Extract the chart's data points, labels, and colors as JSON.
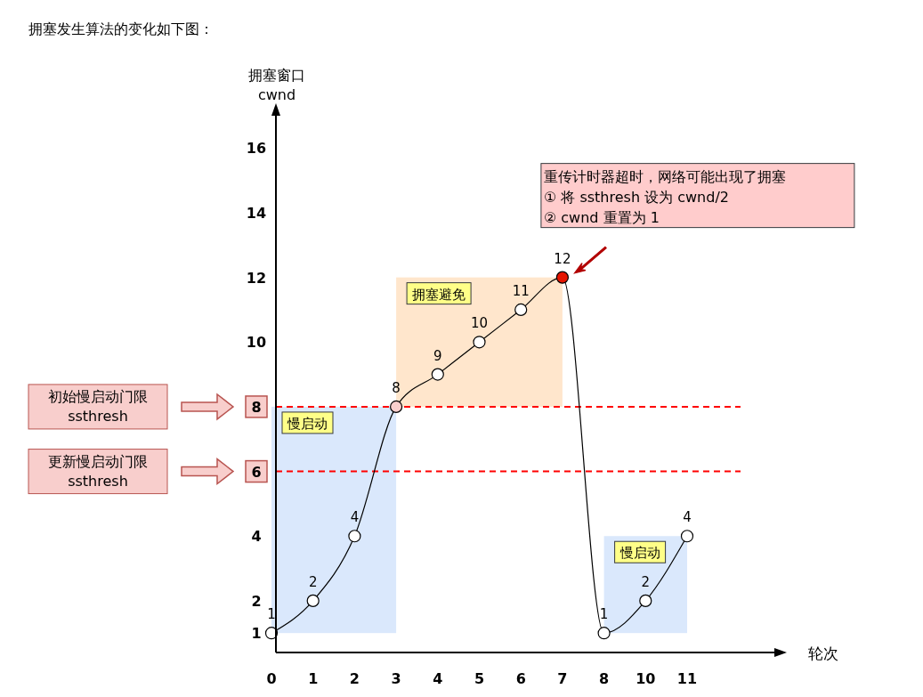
{
  "chart_data": {
    "type": "line",
    "title": "拥塞发生算法的变化如下图：",
    "xlabel": "轮次",
    "ylabel": "拥塞窗口\ncwnd",
    "categories": [
      "0",
      "1",
      "2",
      "3",
      "4",
      "5",
      "6",
      "7",
      "8",
      "10",
      "11"
    ],
    "series": [
      {
        "color": "#000000",
        "colors": [
          "#ffffff",
          "#ffffff",
          "#ffffff",
          "#f8cecc",
          "#ffffff",
          "#ffffff",
          "#ffffff",
          "#e51400",
          "#ffffff",
          "#ffffff",
          "#ffffff"
        ],
        "values": [
          1,
          2,
          4,
          8,
          9,
          10,
          11,
          12,
          1,
          2,
          4
        ]
      }
    ],
    "ylim": [
      0.4,
      17
    ],
    "yticks": [
      1,
      2,
      4,
      6,
      8,
      10,
      12,
      14,
      16
    ],
    "data_labels": true,
    "marker": "circle",
    "line_style": "solid",
    "ref_lines": [
      {
        "axis": "y",
        "value": 8,
        "color": "#ff0000",
        "line_style": "dashed"
      },
      {
        "axis": "y",
        "value": 6,
        "color": "#ff0000",
        "line_style": "dashed"
      }
    ],
    "bands": [
      {
        "axis": "x",
        "from": "0",
        "to": "3",
        "label": "慢启动",
        "color": "#dae8fc"
      },
      {
        "axis": "x",
        "from": "3",
        "to": "7",
        "label": "拥塞避免",
        "color": "#ffe6cc"
      },
      {
        "axis": "x",
        "from": "8",
        "to": "11",
        "label": "慢启动",
        "color": "#dae8fc"
      }
    ],
    "annotations": [
      "初始慢启动门限\nssthresh",
      "更新慢启动门限\nssthresh",
      "重传计时器超时，网络可能出现了拥塞\n① 将 ssthresh 设为 cwnd/2\n② cwnd 重置为 1"
    ]
  }
}
